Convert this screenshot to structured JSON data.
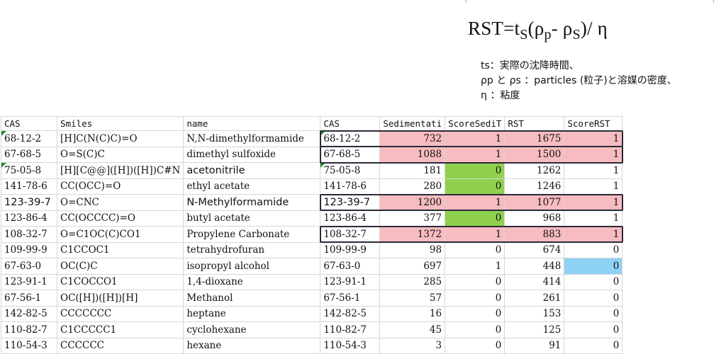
{
  "formula": {
    "lhs": "RST=t",
    "sub1": "S",
    "mid": "(ρ",
    "sub2": "p",
    "dash": "- ρ",
    "sub3": "S",
    "tail": ")/ η"
  },
  "notes": [
    "ts：実際の沈降時間、",
    "ρp と ρs ：particles (粒子)と溶媒の密度、",
    "η ：粘度"
  ],
  "table": {
    "headers": [
      "CAS",
      "Smiles",
      "name",
      "CAS",
      "Sedimentati",
      "ScoreSediT",
      "RST",
      "ScoreRST"
    ],
    "rows": [
      {
        "cas": "68-12-2",
        "smiles": "[H]C(N(C)C)=O",
        "name": "N,N-dimethylformamide",
        "cas2": "68-12-2",
        "sed": "732",
        "ssed": "1",
        "rst": "1675",
        "srst": "1"
      },
      {
        "cas": "67-68-5",
        "smiles": "O=S(C)C",
        "name": "dimethyl sulfoxide",
        "cas2": "67-68-5",
        "sed": "1088",
        "ssed": "1",
        "rst": "1500",
        "srst": "1"
      },
      {
        "cas": "75-05-8",
        "smiles": "[H][C@@]([H])([H])C#N",
        "name": "acetonitrile",
        "cas2": "75-05-8",
        "sed": "181",
        "ssed": "0",
        "rst": "1262",
        "srst": "1"
      },
      {
        "cas": "141-78-6",
        "smiles": "CC(OCC)=O",
        "name": "ethyl acetate",
        "cas2": "141-78-6",
        "sed": "280",
        "ssed": "0",
        "rst": "1246",
        "srst": "1"
      },
      {
        "cas": "123-39-7",
        "smiles": "O=CNC",
        "name": "N-Methylformamide",
        "cas2": "123-39-7",
        "sed": "1200",
        "ssed": "1",
        "rst": "1077",
        "srst": "1"
      },
      {
        "cas": "123-86-4",
        "smiles": "CC(OCCCC)=O",
        "name": "butyl acetate",
        "cas2": "123-86-4",
        "sed": "377",
        "ssed": "0",
        "rst": "968",
        "srst": "1"
      },
      {
        "cas": "108-32-7",
        "smiles": "O=C1OC(C)CO1",
        "name": "Propylene Carbonate",
        "cas2": "108-32-7",
        "sed": "1372",
        "ssed": "1",
        "rst": "883",
        "srst": "1"
      },
      {
        "cas": "109-99-9",
        "smiles": "C1CCOC1",
        "name": "tetrahydrofuran",
        "cas2": "109-99-9",
        "sed": "98",
        "ssed": "0",
        "rst": "674",
        "srst": "0"
      },
      {
        "cas": "67-63-0",
        "smiles": "OC(C)C",
        "name": "isopropyl alcohol",
        "cas2": "67-63-0",
        "sed": "697",
        "ssed": "1",
        "rst": "448",
        "srst": "0"
      },
      {
        "cas": "123-91-1",
        "smiles": "C1COCCO1",
        "name": "1,4-dioxane",
        "cas2": "123-91-1",
        "sed": "285",
        "ssed": "0",
        "rst": "414",
        "srst": "0"
      },
      {
        "cas": "67-56-1",
        "smiles": "OC([H])([H])[H]",
        "name": "Methanol",
        "cas2": "67-56-1",
        "sed": "57",
        "ssed": "0",
        "rst": "261",
        "srst": "0"
      },
      {
        "cas": "142-82-5",
        "smiles": "CCCCCCC",
        "name": "heptane",
        "cas2": "142-82-5",
        "sed": "16",
        "ssed": "0",
        "rst": "153",
        "srst": "0"
      },
      {
        "cas": "110-82-7",
        "smiles": "C1CCCCC1",
        "name": "cyclohexane",
        "cas2": "110-82-7",
        "sed": "45",
        "ssed": "0",
        "rst": "125",
        "srst": "0"
      },
      {
        "cas": "110-54-3",
        "smiles": "CCCCCC",
        "name": "hexane",
        "cas2": "110-54-3",
        "sed": "3",
        "ssed": "0",
        "rst": "91",
        "srst": "0"
      }
    ]
  },
  "colors": {
    "pink": "#f7bcbf",
    "green": "#8fd14f",
    "blue": "#8ed3f5",
    "box": "#2a2a3a",
    "flag": "#2e8b2e"
  }
}
